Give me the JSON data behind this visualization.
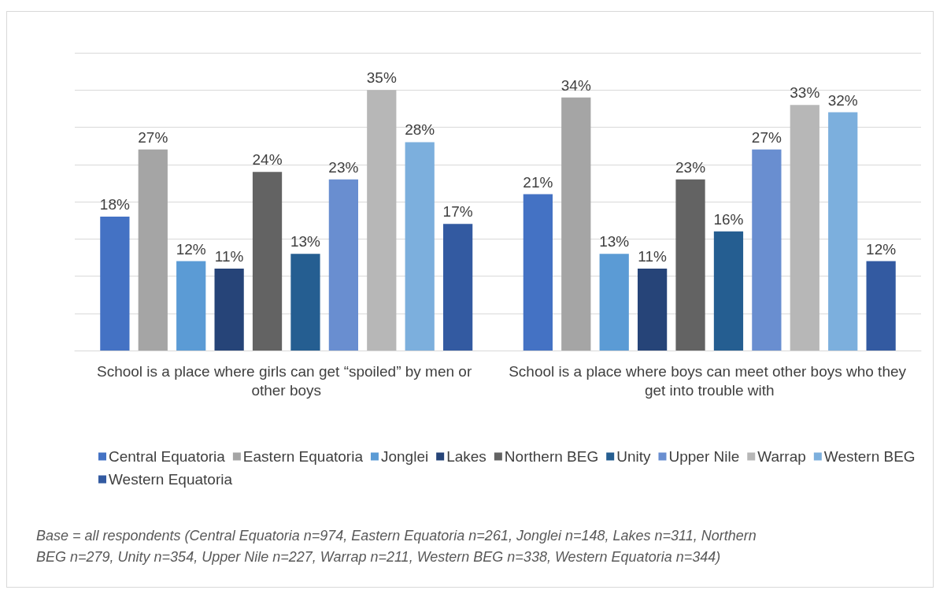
{
  "chart_data": {
    "type": "bar",
    "categories": [
      "School is a place where girls can get “spoiled” by men or other boys",
      "School is a place where boys can meet other boys who they get into trouble with"
    ],
    "series": [
      {
        "name": "Central Equatoria",
        "color": "#4472c4",
        "values": [
          18,
          21
        ],
        "value_labels": [
          "18%",
          "21%"
        ]
      },
      {
        "name": "Eastern Equatoria",
        "color": "#a5a5a5",
        "values": [
          27,
          34
        ],
        "value_labels": [
          "27%",
          "34%"
        ]
      },
      {
        "name": "Jonglei",
        "color": "#5b9bd5",
        "values": [
          12,
          13
        ],
        "value_labels": [
          "12%",
          "13%"
        ]
      },
      {
        "name": "Lakes",
        "color": "#264478",
        "values": [
          11,
          11
        ],
        "value_labels": [
          "11%",
          "11%"
        ]
      },
      {
        "name": "Northern BEG",
        "color": "#636363",
        "values": [
          24,
          23
        ],
        "value_labels": [
          "24%",
          "23%"
        ]
      },
      {
        "name": "Unity",
        "color": "#255e91",
        "values": [
          13,
          16
        ],
        "value_labels": [
          "13%",
          "16%"
        ]
      },
      {
        "name": "Upper Nile",
        "color": "#698ed0",
        "values": [
          23,
          27
        ],
        "value_labels": [
          "23%",
          "27%"
        ]
      },
      {
        "name": "Warrap",
        "color": "#b7b7b7",
        "values": [
          35,
          33
        ],
        "value_labels": [
          "35%",
          "33%"
        ]
      },
      {
        "name": "Western BEG",
        "color": "#7cafdd",
        "values": [
          28,
          32
        ],
        "value_labels": [
          "28%",
          "32%"
        ]
      },
      {
        "name": "Western Equatoria",
        "color": "#335aa1",
        "values": [
          17,
          12
        ],
        "value_labels": [
          "17%",
          "12%"
        ]
      }
    ],
    "ylim": [
      0,
      40
    ],
    "yticks": [
      {
        "value": 0,
        "label": null
      },
      {
        "value": 5,
        "label": null
      },
      {
        "value": 10,
        "label": null
      },
      {
        "value": 15,
        "label": null
      },
      {
        "value": 20,
        "label": null
      },
      {
        "value": 25,
        "label": null
      },
      {
        "value": 30,
        "label": null
      },
      {
        "value": 35,
        "label": null
      },
      {
        "value": 40,
        "label": null
      }
    ],
    "tick_labels": "x",
    "grid": "y",
    "legend": "bottom",
    "annotations": [
      "Base = all respondents (Central Equatoria n=974, Eastern Equatoria n=261, Jonglei n=148, Lakes n=311, Northern BEG n=279, Unity n=354, Upper Nile n=227, Warrap n=211, Western BEG n=338, Western Equatoria n=344)"
    ]
  }
}
